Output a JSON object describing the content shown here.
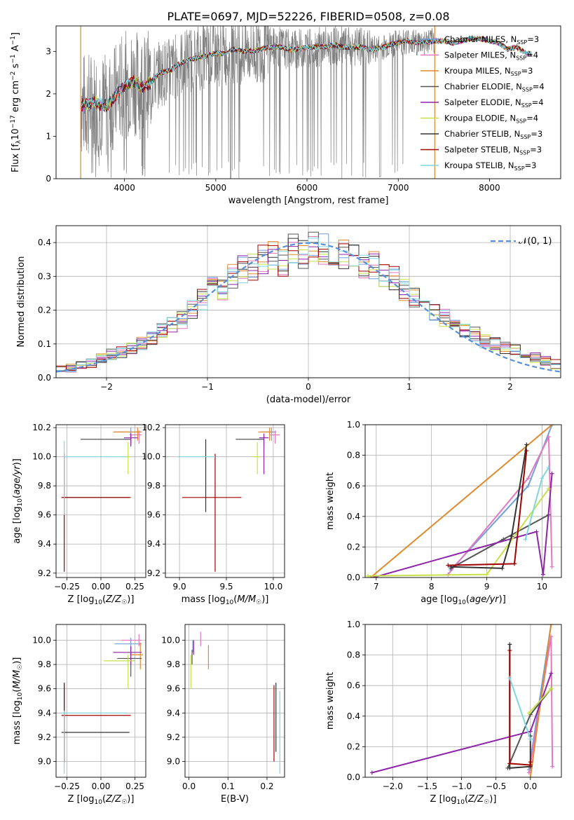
{
  "page": {
    "title": "PLATE=0697, MJD=52226, FIBERID=0508, z=0.08"
  },
  "legend1": [
    {
      "label": "Chabrier MILES, N",
      "sub": "SSP",
      "suffix": "=3",
      "color": "#6fa0dd"
    },
    {
      "label": "Salpeter MILES, N",
      "sub": "SSP",
      "suffix": "=4",
      "color": "#e377c2"
    },
    {
      "label": "Kroupa MILES, N",
      "sub": "SSP",
      "suffix": "=3",
      "color": "#e08a2c"
    },
    {
      "label": "Chabrier ELODIE, N",
      "sub": "SSP",
      "suffix": "=4",
      "color": "#555555"
    },
    {
      "label": "Salpeter ELODIE, N",
      "sub": "SSP",
      "suffix": "=4",
      "color": "#8e24aa"
    },
    {
      "label": "Kroupa ELODIE, N",
      "sub": "SSP",
      "suffix": "=4",
      "color": "#c6e04a"
    },
    {
      "label": "Chabrier STELIB, N",
      "sub": "SSP",
      "suffix": "=3",
      "color": "#333333"
    },
    {
      "label": "Salpeter STELIB, N",
      "sub": "SSP",
      "suffix": "=3",
      "color": "#a00000"
    },
    {
      "label": "Kroupa STELIB, N",
      "sub": "SSP",
      "suffix": "=3",
      "color": "#7fd7dd"
    }
  ],
  "legend2": {
    "label": "𝒩(0, 1)",
    "color": "#5b8ed8"
  },
  "chart_data": [
    {
      "type": "line",
      "title": "PLATE=0697, MJD=52226, FIBERID=0508, z=0.08",
      "xlabel": "wavelength [Angstrom, rest frame]",
      "ylabel": "Flux [f_λ 10^-17 erg cm^-2 s^-1 A^-1]",
      "xlim": [
        3250,
        8780
      ],
      "ylim": [
        0,
        3.6
      ],
      "xticks": [
        "4000",
        "5000",
        "6000",
        "7000",
        "8000"
      ],
      "yticks": [
        "0",
        "1",
        "2",
        "3"
      ],
      "grid": false,
      "legend": "right",
      "series_names_from": "legend1",
      "data_color": "#808080",
      "model_anchor_points": {
        "x": [
          3520,
          3600,
          3700,
          3800,
          3900,
          4000,
          4100,
          4200,
          4300,
          4400,
          4500,
          4600,
          4700,
          4800,
          4900,
          5000,
          5100,
          5200,
          5300,
          5400,
          5500,
          5600,
          5700,
          5800,
          5900,
          6000,
          6100,
          6200,
          6300,
          6400,
          6500,
          6600,
          6700,
          6800,
          6900,
          7000,
          7100,
          7200,
          7300,
          7400,
          7500,
          7600,
          7700,
          7800,
          7900,
          8000,
          8100,
          8200,
          8300,
          8400
        ],
        "y": [
          1.72,
          1.75,
          1.8,
          1.7,
          1.95,
          2.2,
          2.3,
          2.15,
          2.3,
          2.5,
          2.55,
          2.7,
          2.8,
          2.85,
          2.9,
          2.95,
          2.95,
          3.05,
          3.0,
          3.0,
          3.05,
          3.1,
          3.1,
          3.05,
          3.05,
          3.1,
          3.1,
          3.12,
          3.15,
          3.1,
          3.1,
          3.1,
          3.05,
          3.08,
          3.15,
          3.2,
          3.25,
          3.2,
          3.22,
          3.25,
          3.25,
          3.2,
          3.25,
          3.3,
          3.3,
          3.25,
          3.2,
          3.05,
          3.1,
          2.95
        ]
      }
    },
    {
      "type": "bar",
      "title": "",
      "xlabel": "(data-model)/error",
      "ylabel": "Normed distribution",
      "xlim": [
        -2.5,
        2.5
      ],
      "ylim": [
        0,
        0.45
      ],
      "xticks": [
        "−2",
        "−1",
        "0",
        "1",
        "2"
      ],
      "yticks": [
        "0.0",
        "0.1",
        "0.2",
        "0.3",
        "0.4"
      ],
      "grid": true,
      "legend": "top-right",
      "series_names_from": "legend1",
      "reference_curve": "normal(0,1)",
      "bin_edges": [
        -2.5,
        -2.4,
        -2.3,
        -2.2,
        -2.1,
        -2.0,
        -1.9,
        -1.8,
        -1.7,
        -1.6,
        -1.5,
        -1.4,
        -1.3,
        -1.2,
        -1.1,
        -1.0,
        -0.9,
        -0.8,
        -0.7,
        -0.6,
        -0.5,
        -0.4,
        -0.3,
        -0.2,
        -0.1,
        0.0,
        0.1,
        0.2,
        0.3,
        0.4,
        0.5,
        0.6,
        0.7,
        0.8,
        0.9,
        1.0,
        1.1,
        1.2,
        1.3,
        1.4,
        1.5,
        1.6,
        1.7,
        1.8,
        1.9,
        2.0,
        2.1,
        2.2,
        2.3,
        2.4,
        2.5
      ],
      "base_counts": [
        0.025,
        0.03,
        0.035,
        0.045,
        0.055,
        0.07,
        0.075,
        0.085,
        0.1,
        0.12,
        0.14,
        0.16,
        0.17,
        0.2,
        0.23,
        0.27,
        0.26,
        0.3,
        0.32,
        0.33,
        0.35,
        0.36,
        0.34,
        0.38,
        0.37,
        0.39,
        0.38,
        0.37,
        0.37,
        0.36,
        0.33,
        0.33,
        0.3,
        0.29,
        0.26,
        0.24,
        0.22,
        0.2,
        0.18,
        0.15,
        0.14,
        0.13,
        0.11,
        0.1,
        0.09,
        0.08,
        0.07,
        0.06,
        0.05,
        0.04
      ]
    },
    {
      "type": "scatter",
      "title": "",
      "xlabel": "Z [log10(Z/Z☉)]",
      "ylabel": "age [log10(age/yr)]",
      "xlim": [
        -0.33,
        0.33
      ],
      "ylim": [
        9.17,
        10.22
      ],
      "xticks": [
        "−0.25",
        "0.00",
        "0.25"
      ],
      "yticks": [
        "9.2",
        "9.4",
        "9.6",
        "9.8",
        "10.0",
        "10.2"
      ],
      "grid": true,
      "series": [
        {
          "name": "Chabrier MILES",
          "x": 0.22,
          "xerr": [
            0.12,
            0.08
          ],
          "y": 10.17,
          "yerr": [
            0.06,
            0.03
          ]
        },
        {
          "name": "Salpeter MILES",
          "x": 0.28,
          "xerr": [
            0.07,
            0.02
          ],
          "y": 10.15,
          "yerr": [
            0.06,
            0.03
          ]
        },
        {
          "name": "Kroupa MILES",
          "x": 0.27,
          "xerr": [
            0.18,
            0.03
          ],
          "y": 10.17,
          "yerr": [
            0.06,
            0.03
          ]
        },
        {
          "name": "Chabrier ELODIE",
          "x": 0.22,
          "xerr": [
            0.37,
            0.0
          ],
          "y": 10.12,
          "yerr": [
            0.05,
            0.03
          ]
        },
        {
          "name": "Salpeter ELODIE",
          "x": 0.22,
          "xerr": [
            0.05,
            0.05
          ],
          "y": 10.13,
          "yerr": [
            0.05,
            0.03
          ]
        },
        {
          "name": "Kroupa ELODIE",
          "x": 0.2,
          "xerr": [
            0.05,
            0.02
          ],
          "y": 10.0,
          "yerr": [
            0.12,
            0.1
          ]
        },
        {
          "name": "Chabrier STELIB",
          "x": -0.27,
          "xerr": [
            0.02,
            0.48
          ],
          "y": 9.72,
          "yerr": [
            0.0,
            0.0
          ]
        },
        {
          "name": "Salpeter STELIB",
          "x": -0.27,
          "xerr": [
            0.02,
            0.49
          ],
          "y": 9.72,
          "yerr": [
            0.51,
            0.3
          ]
        },
        {
          "name": "Kroupa STELIB",
          "x": -0.27,
          "xerr": [
            0.0,
            0.46
          ],
          "y": 10.0,
          "yerr": [
            0.4,
            0.11
          ]
        }
      ]
    },
    {
      "type": "scatter",
      "title": "",
      "xlabel": "mass [log10(M/M☉)]",
      "ylabel": "",
      "xlim": [
        8.85,
        10.12
      ],
      "ylim": [
        9.17,
        10.22
      ],
      "xticks": [
        "9.0",
        "9.5",
        "10.0"
      ],
      "yticks": [
        "9.2",
        "9.4",
        "9.6",
        "9.8",
        "10.0",
        "10.2"
      ],
      "grid": true,
      "series": [
        {
          "name": "Chabrier MILES",
          "x": 9.98,
          "xerr": [
            0.1,
            0.05
          ],
          "y": 10.17,
          "yerr": [
            0.06,
            0.03
          ]
        },
        {
          "name": "Salpeter MILES",
          "x": 10.02,
          "xerr": [
            0.05,
            0.05
          ],
          "y": 10.15,
          "yerr": [
            0.06,
            0.03
          ]
        },
        {
          "name": "Kroupa MILES",
          "x": 9.96,
          "xerr": [
            0.12,
            0.03
          ],
          "y": 10.17,
          "yerr": [
            0.06,
            0.03
          ]
        },
        {
          "name": "Chabrier ELODIE",
          "x": 9.9,
          "xerr": [
            0.3,
            0.0
          ],
          "y": 10.12,
          "yerr": [
            0.05,
            0.03
          ]
        },
        {
          "name": "Salpeter ELODIE",
          "x": 9.9,
          "xerr": [
            0.05,
            0.05
          ],
          "y": 10.13,
          "yerr": [
            0.25,
            0.03
          ]
        },
        {
          "name": "Kroupa ELODIE",
          "x": 9.83,
          "xerr": [
            0.05,
            0.03
          ],
          "y": 10.0,
          "yerr": [
            0.12,
            0.1
          ]
        },
        {
          "name": "Chabrier STELIB",
          "x": 9.28,
          "xerr": [
            0.0,
            0.0
          ],
          "y": 9.72,
          "yerr": [
            0.1,
            0.4
          ]
        },
        {
          "name": "Salpeter STELIB",
          "x": 9.38,
          "xerr": [
            0.35,
            0.28
          ],
          "y": 9.72,
          "yerr": [
            0.51,
            0.3
          ]
        },
        {
          "name": "Kroupa STELIB",
          "x": 9.38,
          "xerr": [
            0.4,
            0.0
          ],
          "y": 10.0,
          "yerr": [
            0.0,
            0.0
          ]
        }
      ]
    },
    {
      "type": "line",
      "title": "",
      "xlabel": "age [log10(age/yr)]",
      "ylabel": "mass weight",
      "xlim": [
        6.8,
        10.35
      ],
      "ylim": [
        0,
        1
      ],
      "xticks": [
        "7",
        "8",
        "9",
        "10"
      ],
      "yticks": [
        "0.0",
        "0.2",
        "0.4",
        "0.6",
        "0.8",
        "1.0"
      ],
      "grid": true,
      "series": [
        {
          "name": "Chabrier MILES",
          "x": [
            8.35,
            9.75,
            10.18
          ],
          "y": [
            0.05,
            0.6,
            1.0
          ]
        },
        {
          "name": "Salpeter MILES",
          "x": [
            8.3,
            9.75,
            10.12,
            10.18
          ],
          "y": [
            0.02,
            0.65,
            0.92,
            0.07
          ]
        },
        {
          "name": "Kroupa MILES",
          "x": [
            6.9,
            10.18
          ],
          "y": [
            0.0,
            1.0
          ]
        },
        {
          "name": "Chabrier ELODIE",
          "x": [
            8.35,
            9.3,
            10.12
          ],
          "y": [
            0.06,
            0.25,
            0.41
          ]
        },
        {
          "name": "Salpeter ELODIE",
          "x": [
            6.95,
            9.9,
            10.02,
            10.18
          ],
          "y": [
            0.0,
            0.3,
            0.02,
            0.68
          ]
        },
        {
          "name": "Kroupa ELODIE",
          "x": [
            6.85,
            9.0,
            10.12
          ],
          "y": [
            0.01,
            0.02,
            0.58
          ]
        },
        {
          "name": "Chabrier STELIB",
          "x": [
            8.35,
            9.28,
            9.45,
            9.72
          ],
          "y": [
            0.07,
            0.06,
            0.27,
            0.87
          ]
        },
        {
          "name": "Salpeter STELIB",
          "x": [
            8.3,
            9.5,
            9.72
          ],
          "y": [
            0.08,
            0.09,
            0.83
          ]
        },
        {
          "name": "Kroupa STELIB",
          "x": [
            9.7,
            10.0,
            10.12
          ],
          "y": [
            0.25,
            0.65,
            0.72
          ]
        }
      ]
    },
    {
      "type": "scatter",
      "title": "",
      "xlabel": "Z [log10(Z/Z☉)]",
      "ylabel": "mass [log10(M/M☉)]",
      "xlim": [
        -0.33,
        0.33
      ],
      "ylim": [
        8.87,
        10.13
      ],
      "xticks": [
        "−0.25",
        "0.00",
        "0.25"
      ],
      "yticks": [
        "9.0",
        "9.2",
        "9.4",
        "9.6",
        "9.8",
        "10.0"
      ],
      "grid": true,
      "series": [
        {
          "name": "Chabrier MILES",
          "x": 0.22,
          "xerr": [
            0.12,
            0.08
          ],
          "y": 9.97,
          "yerr": [
            0.05,
            0.05
          ]
        },
        {
          "name": "Salpeter MILES",
          "x": 0.28,
          "xerr": [
            0.13,
            0.02
          ],
          "y": 10.0,
          "yerr": [
            0.05,
            0.05
          ]
        },
        {
          "name": "Kroupa MILES",
          "x": 0.29,
          "xerr": [
            0.07,
            0.02
          ],
          "y": 9.88,
          "yerr": [
            0.12,
            0.1
          ]
        },
        {
          "name": "Chabrier ELODIE",
          "x": 0.22,
          "xerr": [
            0.1,
            0.08
          ],
          "y": 9.85,
          "yerr": [
            0.15,
            0.1
          ]
        },
        {
          "name": "Salpeter ELODIE",
          "x": 0.22,
          "xerr": [
            0.13,
            0.08
          ],
          "y": 9.9,
          "yerr": [
            0.1,
            0.05
          ]
        },
        {
          "name": "Kroupa ELODIE",
          "x": 0.2,
          "xerr": [
            0.18,
            0.05
          ],
          "y": 9.83,
          "yerr": [
            0.23,
            0.05
          ]
        },
        {
          "name": "Chabrier STELIB",
          "x": -0.27,
          "xerr": [
            0.02,
            0.48
          ],
          "y": 9.24,
          "yerr": [
            0.25,
            0.4
          ]
        },
        {
          "name": "Salpeter STELIB",
          "x": -0.27,
          "xerr": [
            0.02,
            0.49
          ],
          "y": 9.38,
          "yerr": [
            0.38,
            0.27
          ]
        },
        {
          "name": "Kroupa STELIB",
          "x": -0.27,
          "xerr": [
            0.02,
            0.46
          ],
          "y": 9.4,
          "yerr": [
            0.5,
            0.02
          ]
        }
      ]
    },
    {
      "type": "scatter",
      "title": "",
      "xlabel": "E(B-V)",
      "ylabel": "",
      "xlim": [
        -0.01,
        0.245
      ],
      "ylim": [
        8.87,
        10.13
      ],
      "xticks": [
        "0.0",
        "0.1",
        "0.2"
      ],
      "yticks": [
        "9.0",
        "9.2",
        "9.4",
        "9.6",
        "9.8",
        "10.0"
      ],
      "grid": true,
      "series": [
        {
          "name": "Chabrier MILES",
          "x": 0.01,
          "yerr_range": [
            9.9,
            10.0
          ]
        },
        {
          "name": "Salpeter MILES",
          "x": 0.03,
          "yerr_range": [
            9.95,
            10.07
          ]
        },
        {
          "name": "Kroupa MILES",
          "x": 0.05,
          "yerr_range": [
            9.76,
            9.96
          ]
        },
        {
          "name": "Chabrier ELODIE",
          "x": 0.008,
          "yerr_range": [
            9.8,
            9.92
          ]
        },
        {
          "name": "Salpeter ELODIE",
          "x": 0.012,
          "yerr_range": [
            9.88,
            10.0
          ]
        },
        {
          "name": "Kroupa ELODIE",
          "x": 0.005,
          "yerr_range": [
            9.6,
            9.88
          ]
        },
        {
          "name": "Chabrier STELIB",
          "x": 0.223,
          "yerr_range": [
            9.08,
            9.65
          ]
        },
        {
          "name": "Salpeter STELIB",
          "x": 0.218,
          "yerr_range": [
            9.0,
            9.63
          ]
        },
        {
          "name": "Kroupa STELIB",
          "x": 0.233,
          "yerr_range": [
            8.9,
            9.58
          ]
        }
      ]
    },
    {
      "type": "line",
      "title": "",
      "xlabel": "Z [log10(Z/Z☉)]",
      "ylabel": "mass weight",
      "xlim": [
        -2.4,
        0.45
      ],
      "ylim": [
        0,
        1
      ],
      "xticks": [
        "−2.0",
        "−1.5",
        "−1.0",
        "−0.5",
        "0.0"
      ],
      "yticks": [
        "0.0",
        "0.2",
        "0.4",
        "0.6",
        "0.8",
        "1.0"
      ],
      "grid": true,
      "series": [
        {
          "name": "Chabrier MILES",
          "x": [
            -0.02,
            0.3
          ],
          "y": [
            0.05,
            1.0
          ]
        },
        {
          "name": "Salpeter MILES",
          "x": [
            -0.02,
            0.3,
            0.32
          ],
          "y": [
            0.03,
            0.92,
            0.07
          ]
        },
        {
          "name": "Kroupa MILES",
          "x": [
            0.0,
            0.3
          ],
          "y": [
            0.0,
            1.0
          ]
        },
        {
          "name": "Chabrier ELODIE",
          "x": [
            -0.33,
            0.0,
            0.3
          ],
          "y": [
            0.06,
            0.41,
            0.58
          ]
        },
        {
          "name": "Salpeter ELODIE",
          "x": [
            -2.3,
            0.0,
            0.3
          ],
          "y": [
            0.03,
            0.3,
            0.68
          ]
        },
        {
          "name": "Kroupa ELODIE",
          "x": [
            -0.02,
            0.3
          ],
          "y": [
            0.42,
            0.58
          ]
        },
        {
          "name": "Chabrier STELIB",
          "x": [
            -0.3,
            -0.3,
            0.0,
            0.0
          ],
          "y": [
            0.87,
            0.06,
            0.07,
            0.27
          ]
        },
        {
          "name": "Salpeter STELIB",
          "x": [
            -0.3,
            -0.3,
            0.0,
            0.0
          ],
          "y": [
            0.83,
            0.09,
            0.08,
            0.1
          ]
        },
        {
          "name": "Kroupa STELIB",
          "x": [
            -0.3,
            0.0
          ],
          "y": [
            0.65,
            0.25
          ]
        }
      ]
    }
  ]
}
